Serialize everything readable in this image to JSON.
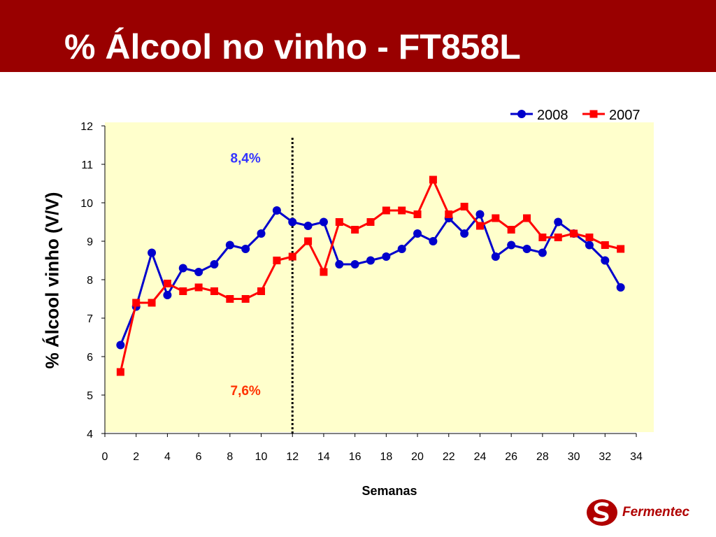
{
  "slide": {
    "title": "% Álcool no vinho - FT858L"
  },
  "logo": {
    "text": "Fermentec",
    "icon": "fermentec-logo-icon"
  },
  "chart_data": {
    "type": "line",
    "xlabel": "Semanas",
    "ylabel": "% Álcool vinho (V/V)",
    "xlim": [
      0,
      34
    ],
    "ylim": [
      4,
      12
    ],
    "xticks": [
      0,
      2,
      4,
      6,
      8,
      10,
      12,
      14,
      16,
      18,
      20,
      22,
      24,
      26,
      28,
      30,
      32,
      34
    ],
    "yticks": [
      4,
      5,
      6,
      7,
      8,
      9,
      10,
      11,
      12
    ],
    "grid": false,
    "legend_position": "top-right",
    "plot_background": "#ffffcc",
    "series": [
      {
        "name": "2008",
        "color": "#0000cc",
        "marker": "circle",
        "x": [
          1,
          2,
          3,
          4,
          5,
          6,
          7,
          8,
          9,
          10,
          11,
          12,
          13,
          14,
          15,
          16,
          17,
          18,
          19,
          20,
          21,
          22,
          23,
          24,
          25,
          26,
          27,
          28,
          29,
          30,
          31,
          32,
          33
        ],
        "values": [
          6.3,
          7.3,
          8.7,
          7.6,
          8.3,
          8.2,
          8.4,
          8.9,
          8.8,
          9.2,
          9.8,
          9.5,
          9.4,
          9.5,
          8.4,
          8.4,
          8.5,
          8.6,
          8.8,
          9.2,
          9.0,
          9.6,
          9.2,
          9.7,
          8.6,
          8.9,
          8.8,
          8.7,
          9.5,
          9.2,
          8.9,
          8.5,
          7.8
        ]
      },
      {
        "name": "2007",
        "color": "#ff0000",
        "marker": "square",
        "x": [
          1,
          2,
          3,
          4,
          5,
          6,
          7,
          8,
          9,
          10,
          11,
          12,
          13,
          14,
          15,
          16,
          17,
          18,
          19,
          20,
          21,
          22,
          23,
          24,
          25,
          26,
          27,
          28,
          29,
          30,
          31,
          32,
          33
        ],
        "values": [
          5.6,
          7.4,
          7.4,
          7.9,
          7.7,
          7.8,
          7.7,
          7.5,
          7.5,
          7.7,
          8.5,
          8.6,
          9.0,
          8.2,
          9.5,
          9.3,
          9.5,
          9.8,
          9.8,
          9.7,
          10.6,
          9.7,
          9.9,
          9.4,
          9.6,
          9.3,
          9.6,
          9.1,
          9.1,
          9.2,
          9.1,
          8.9,
          8.8
        ]
      }
    ],
    "vline": {
      "x": 12,
      "style": "dotted",
      "color": "#000000"
    },
    "annotations": [
      {
        "text": "8,4%",
        "x": 9,
        "y": 11.05,
        "color": "#3333ff"
      },
      {
        "text": "7,6%",
        "x": 9,
        "y": 5.0,
        "color": "#ff3300"
      }
    ]
  }
}
